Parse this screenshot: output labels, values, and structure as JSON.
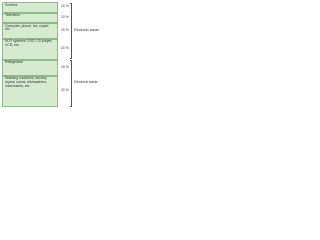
{
  "chart_data": {
    "type": "stacked-column",
    "series": [
      {
        "name": "Screens",
        "values": [
          10
        ],
        "value_labels": [
          "10 %"
        ]
      },
      {
        "name": "Television",
        "values": [
          10
        ],
        "value_labels": [
          "10 %"
        ]
      },
      {
        "name": "Computer, phone, fax, copier, etc.",
        "values": [
          15
        ],
        "value_labels": [
          "15 %"
        ]
      },
      {
        "name": "Hi-Fi systems, DVD, CD player, VCR, etc.",
        "values": [
          20
        ],
        "value_labels": [
          "20 %"
        ]
      },
      {
        "name": "Refrigerator",
        "values": [
          15
        ],
        "value_labels": [
          "15 %"
        ]
      },
      {
        "name": "Washing machines, laundry dryers, ovens, dishwashers, microwaves, etc.",
        "values": [
          30
        ],
        "value_labels": [
          "30 %"
        ]
      }
    ],
    "color": "#d4ebcf",
    "edge_color": "#8dbb86",
    "groups": [
      "Electronic waste",
      "Electrical waste"
    ]
  }
}
